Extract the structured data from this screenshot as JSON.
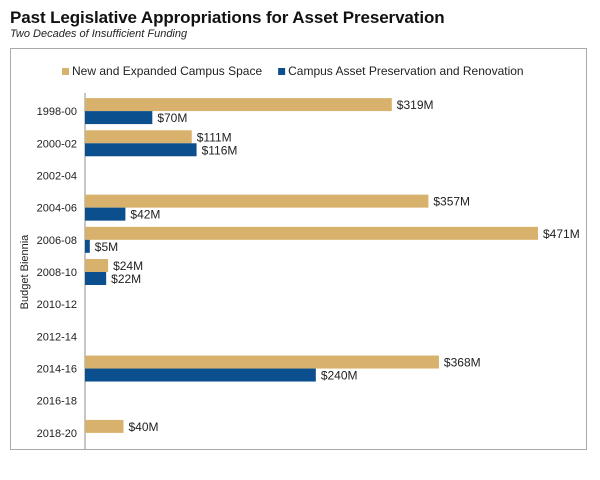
{
  "title": "Past Legislative Appropriations for Asset Preservation",
  "subtitle": "Two Decades of Insufficient Funding",
  "colors": {
    "new_space": "#d8b26c",
    "preservation": "#0c4f8f"
  },
  "chart_data": {
    "type": "bar",
    "orientation": "horizontal",
    "title": "Past Legislative Appropriations for Asset Preservation",
    "subtitle": "Two Decades of Insufficient Funding",
    "ylabel": "Budget Biennia",
    "xlabel": "",
    "value_unit": "$M",
    "xlim": [
      0,
      471
    ],
    "grid": false,
    "legend": "top",
    "categories": [
      "1998-00",
      "2000-02",
      "2002-04",
      "2004-06",
      "2006-08",
      "2008-10",
      "2010-12",
      "2012-14",
      "2014-16",
      "2016-18",
      "2018-20"
    ],
    "series": [
      {
        "name": "New and Expanded Campus Space",
        "color": "#d8b26c",
        "values": [
          319,
          111,
          null,
          357,
          471,
          24,
          null,
          null,
          368,
          null,
          40
        ],
        "labels": [
          "$319M",
          "$111M",
          "",
          "$357M",
          "$471M",
          "$24M",
          "",
          "",
          "$368M",
          "",
          "$40M"
        ]
      },
      {
        "name": "Campus Asset Preservation and Renovation",
        "color": "#0c4f8f",
        "values": [
          70,
          116,
          null,
          42,
          5,
          22,
          null,
          null,
          240,
          null,
          null
        ],
        "labels": [
          "$70M",
          "$116M",
          "",
          "$42M",
          "$5M",
          "$22M",
          "",
          "",
          "$240M",
          "",
          ""
        ]
      }
    ]
  }
}
